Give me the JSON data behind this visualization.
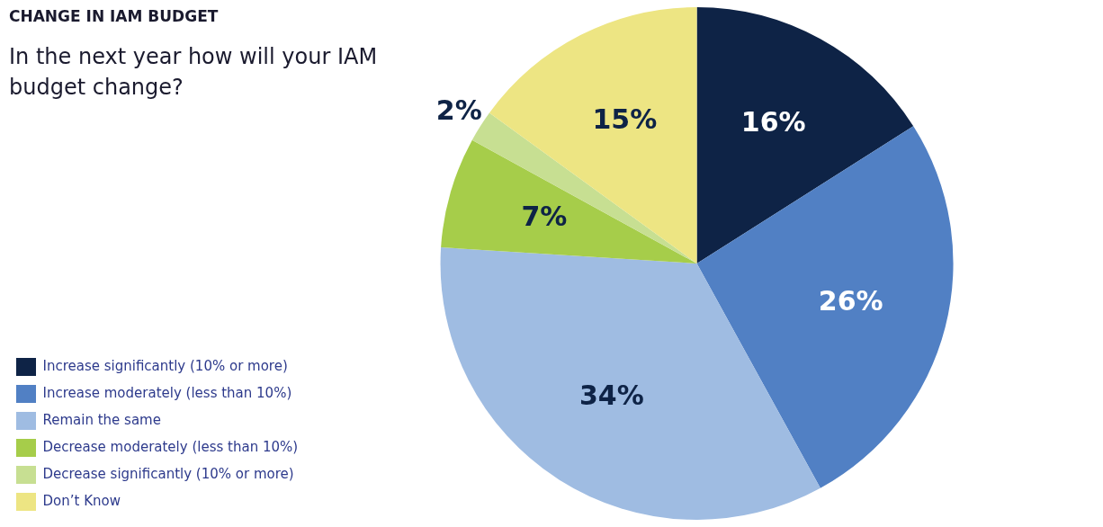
{
  "chart_data": {
    "type": "pie",
    "title": "CHANGE IN IAM BUDGET",
    "subtitle": "In the next year how will your IAM budget change?",
    "categories": [
      "Increase significantly (10% or more)",
      "Increase moderately (less than 10%)",
      "Remain the same",
      "Decrease moderately (less than 10%)",
      "Decrease significantly (10% or more)",
      "Don’t Know"
    ],
    "values": [
      16,
      26,
      34,
      7,
      2,
      15
    ],
    "colors": [
      "#0e2346",
      "#5180c4",
      "#9fbce2",
      "#a6cd4a",
      "#c7df92",
      "#ede583"
    ],
    "value_labels": [
      "16%",
      "26%",
      "34%",
      "7%",
      "2%",
      "15%"
    ],
    "legend": "bottom left"
  }
}
